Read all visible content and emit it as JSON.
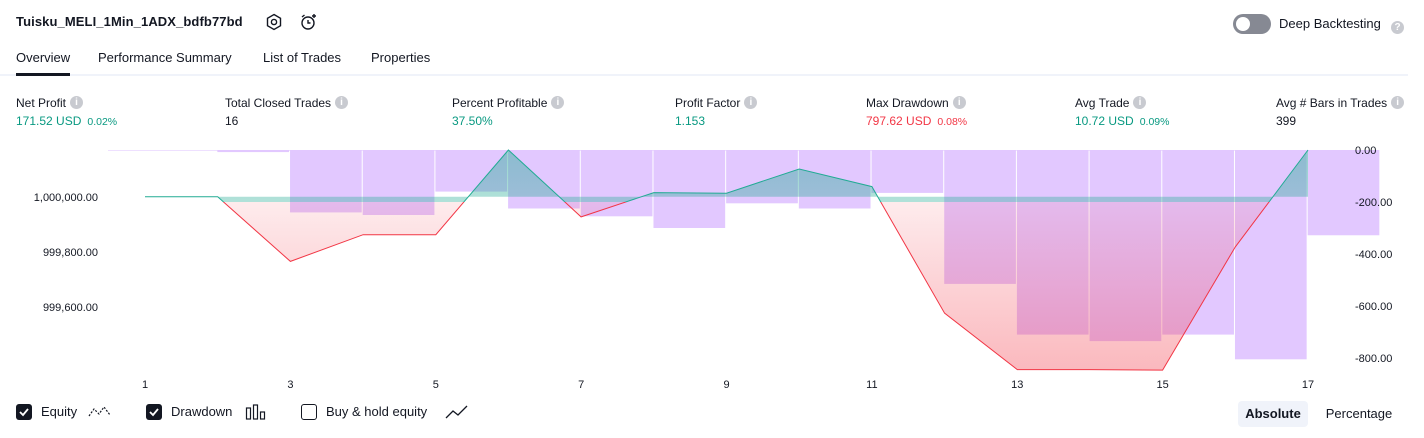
{
  "header": {
    "title": "Tuisku_MELI_1Min_1ADX_bdfb77bd",
    "deep_backtesting_label": "Deep Backtesting",
    "deep_backtesting_enabled": false
  },
  "tabs": [
    {
      "label": "Overview",
      "active": true
    },
    {
      "label": "Performance Summary",
      "active": false
    },
    {
      "label": "List of Trades",
      "active": false
    },
    {
      "label": "Properties",
      "active": false
    }
  ],
  "metrics": {
    "net_profit": {
      "label": "Net Profit",
      "value": "171.52 USD",
      "percent": "0.02%"
    },
    "total_closed_trades": {
      "label": "Total Closed Trades",
      "value": "16"
    },
    "percent_profitable": {
      "label": "Percent Profitable",
      "value": "37.50%"
    },
    "profit_factor": {
      "label": "Profit Factor",
      "value": "1.153"
    },
    "max_drawdown": {
      "label": "Max Drawdown",
      "value": "797.62 USD",
      "percent": "0.08%"
    },
    "avg_trade": {
      "label": "Avg Trade",
      "value": "10.72 USD",
      "percent": "0.09%"
    },
    "avg_bars": {
      "label": "Avg # Bars in Trades",
      "value": "399"
    }
  },
  "chart_data": {
    "type": "line",
    "x_ticks": [
      "1",
      "3",
      "5",
      "7",
      "9",
      "11",
      "13",
      "15",
      "17"
    ],
    "left_ticks": [
      "1,000,000.00",
      "999,800.00",
      "999,600.00"
    ],
    "right_ticks": [
      "0.00",
      "-200.00",
      "-400.00",
      "-600.00",
      "-800.00"
    ],
    "equity": [
      {
        "x": 1,
        "y": 1000000.0
      },
      {
        "x": 2,
        "y": 1000000.0
      },
      {
        "x": 3,
        "y": 999765
      },
      {
        "x": 4,
        "y": 999862
      },
      {
        "x": 5,
        "y": 999862
      },
      {
        "x": 6,
        "y": 1000170
      },
      {
        "x": 7,
        "y": 999927
      },
      {
        "x": 8,
        "y": 1000015
      },
      {
        "x": 9,
        "y": 1000013
      },
      {
        "x": 10,
        "y": 1000101
      },
      {
        "x": 11,
        "y": 1000037
      },
      {
        "x": 12,
        "y": 999577
      },
      {
        "x": 13,
        "y": 999372
      },
      {
        "x": 14,
        "y": 999372
      },
      {
        "x": 15,
        "y": 999370
      },
      {
        "x": 16,
        "y": 999818
      },
      {
        "x": 17,
        "y": 1000170
      }
    ],
    "drawdown": [
      {
        "x": 1,
        "y": 0
      },
      {
        "x": 2,
        "y": -8
      },
      {
        "x": 3,
        "y": -240
      },
      {
        "x": 4,
        "y": -250
      },
      {
        "x": 5,
        "y": -160
      },
      {
        "x": 6,
        "y": -225
      },
      {
        "x": 7,
        "y": -255
      },
      {
        "x": 8,
        "y": -300
      },
      {
        "x": 9,
        "y": -205
      },
      {
        "x": 10,
        "y": -225
      },
      {
        "x": 11,
        "y": -165
      },
      {
        "x": 12,
        "y": -515
      },
      {
        "x": 13,
        "y": -710
      },
      {
        "x": 14,
        "y": -735
      },
      {
        "x": 15,
        "y": -710
      },
      {
        "x": 16,
        "y": -805
      },
      {
        "x": 17,
        "y": -328
      }
    ],
    "left_range": [
      999385,
      1000170
    ],
    "right_range": [
      -800,
      0
    ],
    "colors": {
      "up": "#22ab94",
      "down": "#f23645",
      "drawdown": "#e2c8ff",
      "grid": "#f0f3fa"
    }
  },
  "legend": {
    "equity": {
      "label": "Equity",
      "checked": true
    },
    "drawdown": {
      "label": "Drawdown",
      "checked": true
    },
    "buy_hold": {
      "label": "Buy & hold equity",
      "checked": false
    }
  },
  "view_toggle": {
    "absolute": "Absolute",
    "percentage": "Percentage",
    "selected": "Absolute"
  }
}
